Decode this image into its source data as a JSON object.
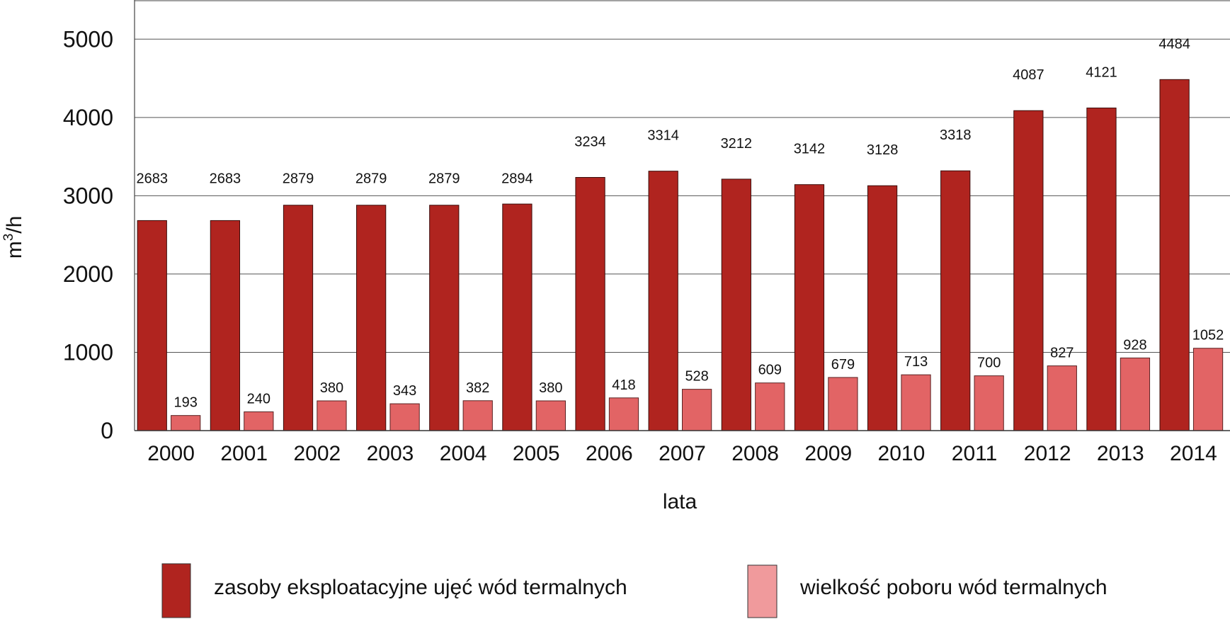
{
  "chart_data": {
    "type": "bar",
    "title": "",
    "xlabel": "lata",
    "ylabel_base": "m",
    "ylabel_sup": "3",
    "ylabel_rest": "/h",
    "ylim": [
      0,
      5500
    ],
    "yticks": [
      0,
      1000,
      2000,
      3000,
      4000,
      5000
    ],
    "grid": true,
    "categories": [
      "2000",
      "2001",
      "2002",
      "2003",
      "2004",
      "2005",
      "2006",
      "2007",
      "2008",
      "2009",
      "2010",
      "2011",
      "2012",
      "2013",
      "2014"
    ],
    "series": [
      {
        "name": "zasoby eksploatacyjne ujęć wód termalnych",
        "color": "#b0241f",
        "values": [
          2683,
          2683,
          2879,
          2879,
          2879,
          2894,
          3234,
          3314,
          3212,
          3142,
          3128,
          3318,
          4087,
          4121,
          4484
        ]
      },
      {
        "name": "wielkość poboru wód termalnych",
        "color": "#e26465",
        "legend_color": "#f09a9c",
        "values": [
          193,
          240,
          380,
          343,
          382,
          380,
          418,
          528,
          609,
          679,
          713,
          700,
          827,
          928,
          1052
        ]
      }
    ],
    "legend_position": "bottom"
  }
}
